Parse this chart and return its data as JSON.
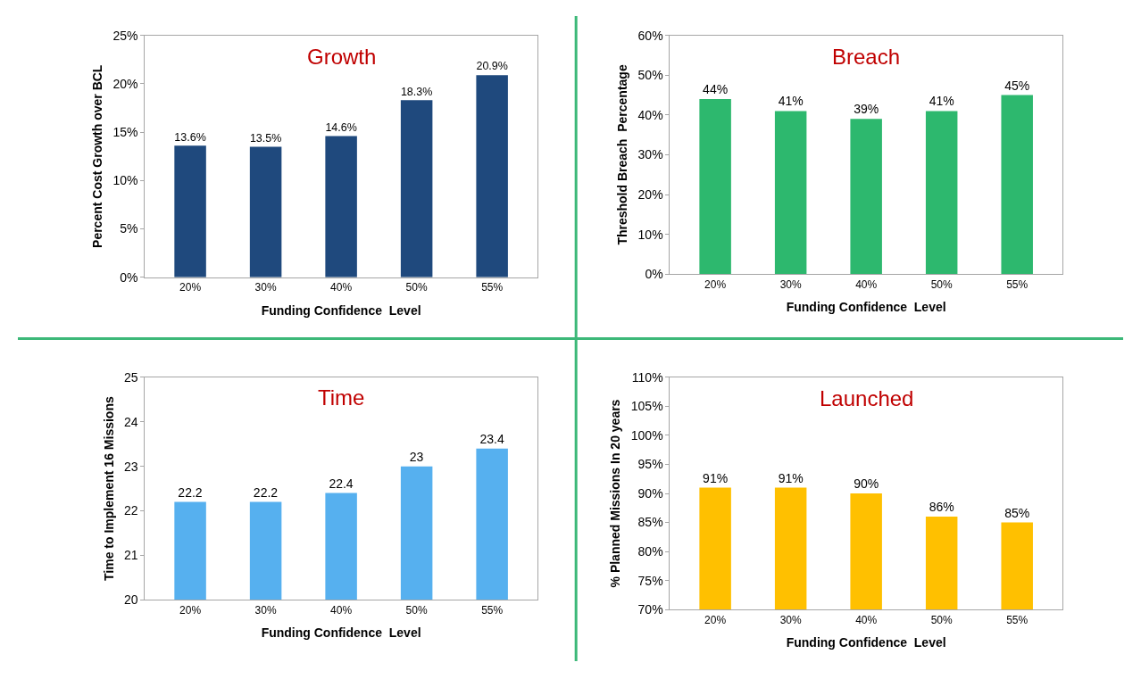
{
  "chart_data": [
    {
      "type": "bar",
      "title": "Growth",
      "xlabel": "Funding Confidence  Level",
      "ylabel": "Percent Cost Growth over BCL",
      "categories": [
        "20%",
        "30%",
        "40%",
        "50%",
        "55%"
      ],
      "values": [
        13.6,
        13.5,
        14.6,
        18.3,
        20.9
      ],
      "value_labels": [
        "13.6%",
        "13.5%",
        "14.6%",
        "18.3%",
        "20.9%"
      ],
      "color": "#1f497d",
      "ylim": [
        0,
        25
      ],
      "yticks": [
        {
          "value": 0,
          "label": "0%"
        },
        {
          "value": 5,
          "label": "5%"
        },
        {
          "value": 10,
          "label": "10%"
        },
        {
          "value": 15,
          "label": "15%"
        },
        {
          "value": 20,
          "label": "20%"
        },
        {
          "value": 25,
          "label": "25%"
        }
      ]
    },
    {
      "type": "bar",
      "title": "Breach",
      "xlabel": "Funding Confidence  Level",
      "ylabel": "Threshold Breach  Percentage",
      "categories": [
        "20%",
        "30%",
        "40%",
        "50%",
        "55%"
      ],
      "values": [
        44,
        41,
        39,
        41,
        45
      ],
      "value_labels": [
        "44%",
        "41%",
        "39%",
        "41%",
        "45%"
      ],
      "color": "#2db86e",
      "ylim": [
        0,
        60
      ],
      "yticks": [
        {
          "value": 0,
          "label": "0%"
        },
        {
          "value": 10,
          "label": "10%"
        },
        {
          "value": 20,
          "label": "20%"
        },
        {
          "value": 30,
          "label": "30%"
        },
        {
          "value": 40,
          "label": "40%"
        },
        {
          "value": 50,
          "label": "50%"
        },
        {
          "value": 60,
          "label": "60%"
        }
      ]
    },
    {
      "type": "bar",
      "title": "Time",
      "xlabel": "Funding Confidence  Level",
      "ylabel": "Time to Implement 16 Missions",
      "categories": [
        "20%",
        "30%",
        "40%",
        "50%",
        "55%"
      ],
      "values": [
        22.2,
        22.2,
        22.4,
        23,
        23.4
      ],
      "data_labels": true,
      "color": "#56b0ef",
      "ylim": [
        20,
        25
      ],
      "yticks": [
        20,
        21,
        22,
        23,
        24,
        25
      ]
    },
    {
      "type": "bar",
      "title": "Launched",
      "xlabel": "Funding Confidence  Level",
      "ylabel": "% Planned Missions In 20 years",
      "categories": [
        "20%",
        "30%",
        "40%",
        "50%",
        "55%"
      ],
      "values": [
        91,
        91,
        90,
        86,
        85
      ],
      "value_labels": [
        "91%",
        "91%",
        "90%",
        "86%",
        "85%"
      ],
      "color": "#ffc000",
      "ylim": [
        70,
        110
      ],
      "yticks": [
        {
          "value": 70,
          "label": "70%"
        },
        {
          "value": 75,
          "label": "75%"
        },
        {
          "value": 80,
          "label": "80%"
        },
        {
          "value": 85,
          "label": "85%"
        },
        {
          "value": 90,
          "label": "90%"
        },
        {
          "value": 95,
          "label": "95%"
        },
        {
          "value": 100,
          "label": "100%"
        },
        {
          "value": 105,
          "label": "105%"
        },
        {
          "value": 110,
          "label": "110%"
        }
      ]
    }
  ]
}
